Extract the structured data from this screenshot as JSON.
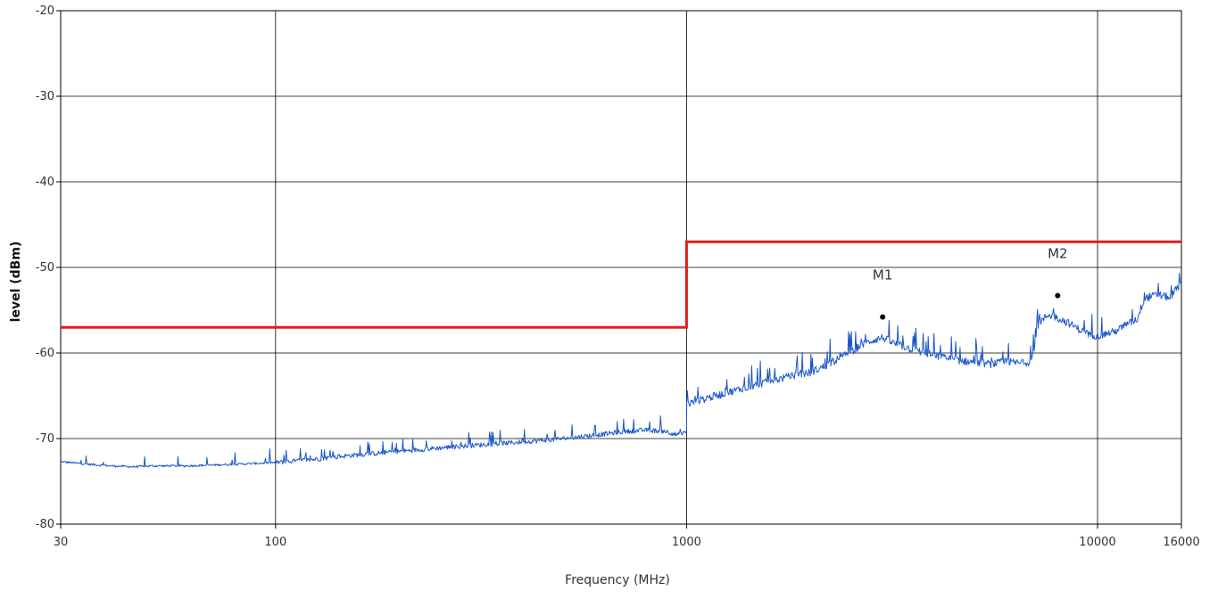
{
  "chart_data": {
    "type": "line",
    "title": "",
    "xlabel": "Frequency (MHz)",
    "ylabel": "level (dBm)",
    "xscale": "log",
    "xlim": [
      30,
      16000
    ],
    "ylim": [
      -80,
      -20
    ],
    "grid": true,
    "legend": "none",
    "x_ticks": [
      {
        "value": 30,
        "label": "30"
      },
      {
        "value": 100,
        "label": "100"
      },
      {
        "value": 1000,
        "label": "1000"
      },
      {
        "value": 10000,
        "label": "10000"
      },
      {
        "value": 16000,
        "label": "16000"
      }
    ],
    "y_ticks": [
      {
        "value": -20,
        "label": "-20"
      },
      {
        "value": -30,
        "label": "-30"
      },
      {
        "value": -40,
        "label": "-40"
      },
      {
        "value": -50,
        "label": "-50"
      },
      {
        "value": -60,
        "label": "-60"
      },
      {
        "value": -70,
        "label": "-70"
      },
      {
        "value": -80,
        "label": "-80"
      }
    ],
    "series": [
      {
        "role": "limit",
        "color": "#e31b1b",
        "x": [
          30,
          1000,
          1000,
          16000
        ],
        "y": [
          -57,
          -57,
          -47,
          -47
        ]
      },
      {
        "role": "measurement",
        "color": "#1a56c8",
        "x": [
          30,
          35,
          40,
          45,
          50,
          60,
          70,
          80,
          90,
          100,
          120,
          150,
          200,
          250,
          300,
          400,
          500,
          600,
          700,
          800,
          900,
          950,
          1000,
          1001,
          1100,
          1200,
          1400,
          1600,
          1800,
          2000,
          2200,
          2400,
          2600,
          2800,
          3000,
          3200,
          3500,
          4000,
          4500,
          5000,
          5500,
          6000,
          6500,
          6900,
          7200,
          7600,
          8000,
          8500,
          9000,
          9500,
          10000,
          11000,
          12000,
          12500,
          13000,
          14000,
          15000,
          16000
        ],
        "y": [
          -72.7,
          -73.0,
          -73.2,
          -73.3,
          -73.2,
          -73.2,
          -73.1,
          -73.0,
          -72.9,
          -72.8,
          -72.5,
          -72.0,
          -71.5,
          -71.1,
          -70.8,
          -70.4,
          -70.0,
          -69.6,
          -69.2,
          -69.0,
          -69.2,
          -69.6,
          -69.3,
          -66.0,
          -65.4,
          -64.9,
          -64.0,
          -63.3,
          -62.7,
          -62.3,
          -61.4,
          -60.4,
          -59.4,
          -58.6,
          -58.2,
          -58.9,
          -59.5,
          -60.3,
          -60.8,
          -61.1,
          -61.3,
          -61.0,
          -61.2,
          -61.0,
          -56.5,
          -55.5,
          -55.9,
          -56.5,
          -57.2,
          -57.8,
          -58.0,
          -57.5,
          -56.5,
          -56.0,
          -53.6,
          -53.2,
          -53.5,
          -51.8
        ]
      }
    ],
    "markers": [
      {
        "label": "M1",
        "x": 3000,
        "y": -55.8
      },
      {
        "label": "M2",
        "x": 8000,
        "y": -53.3
      }
    ]
  }
}
